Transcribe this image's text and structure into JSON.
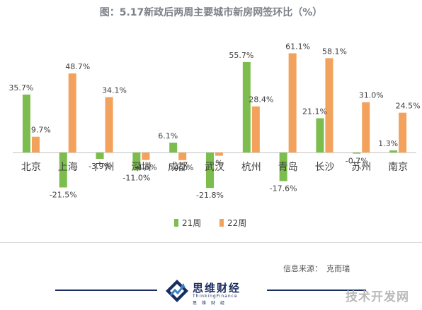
{
  "chart_data": {
    "type": "bar",
    "title": "图：5.17新政后两周主要城市新房网签环比（%）",
    "categories": [
      "北京",
      "上海",
      "广州",
      "深圳",
      "成都",
      "武汉",
      "杭州",
      "青岛",
      "长沙",
      "苏州",
      "南京"
    ],
    "series": [
      {
        "name": "21周",
        "color": "#7cbd4e",
        "values": [
          35.7,
          -21.5,
          -3.9,
          -11.0,
          6.1,
          -21.8,
          55.7,
          -17.6,
          21.1,
          -0.7,
          1.3
        ],
        "labels": [
          "35.7%",
          "-21.5%",
          "-3.9%",
          "-11.0%",
          "6.1%",
          "-21.8%",
          "55.7%",
          "-17.6%",
          "21.1%",
          "-0.7%",
          "1.3%"
        ]
      },
      {
        "name": "22周",
        "color": "#f2a25c",
        "values": [
          9.7,
          48.7,
          34.1,
          -4.6,
          -4.7,
          -2.0,
          28.4,
          61.1,
          58.1,
          31.0,
          24.5
        ],
        "labels": [
          "9.7%",
          "48.7%",
          "34.1%",
          "-4.6%",
          "-4.7%",
          "%",
          "28.4%",
          "61.1%",
          "58.1%",
          "31.0%",
          "24.5%"
        ]
      }
    ],
    "legend_position": "bottom-center",
    "grid": false,
    "ylim": [
      -30,
      65
    ]
  },
  "footer": {
    "source_label": "信息来源：",
    "source_value": "克而瑞"
  },
  "logo": {
    "name": "思维财经",
    "sub": "ThinkingFinance",
    "sub2": "思维财经"
  },
  "watermark": "技术开发网"
}
